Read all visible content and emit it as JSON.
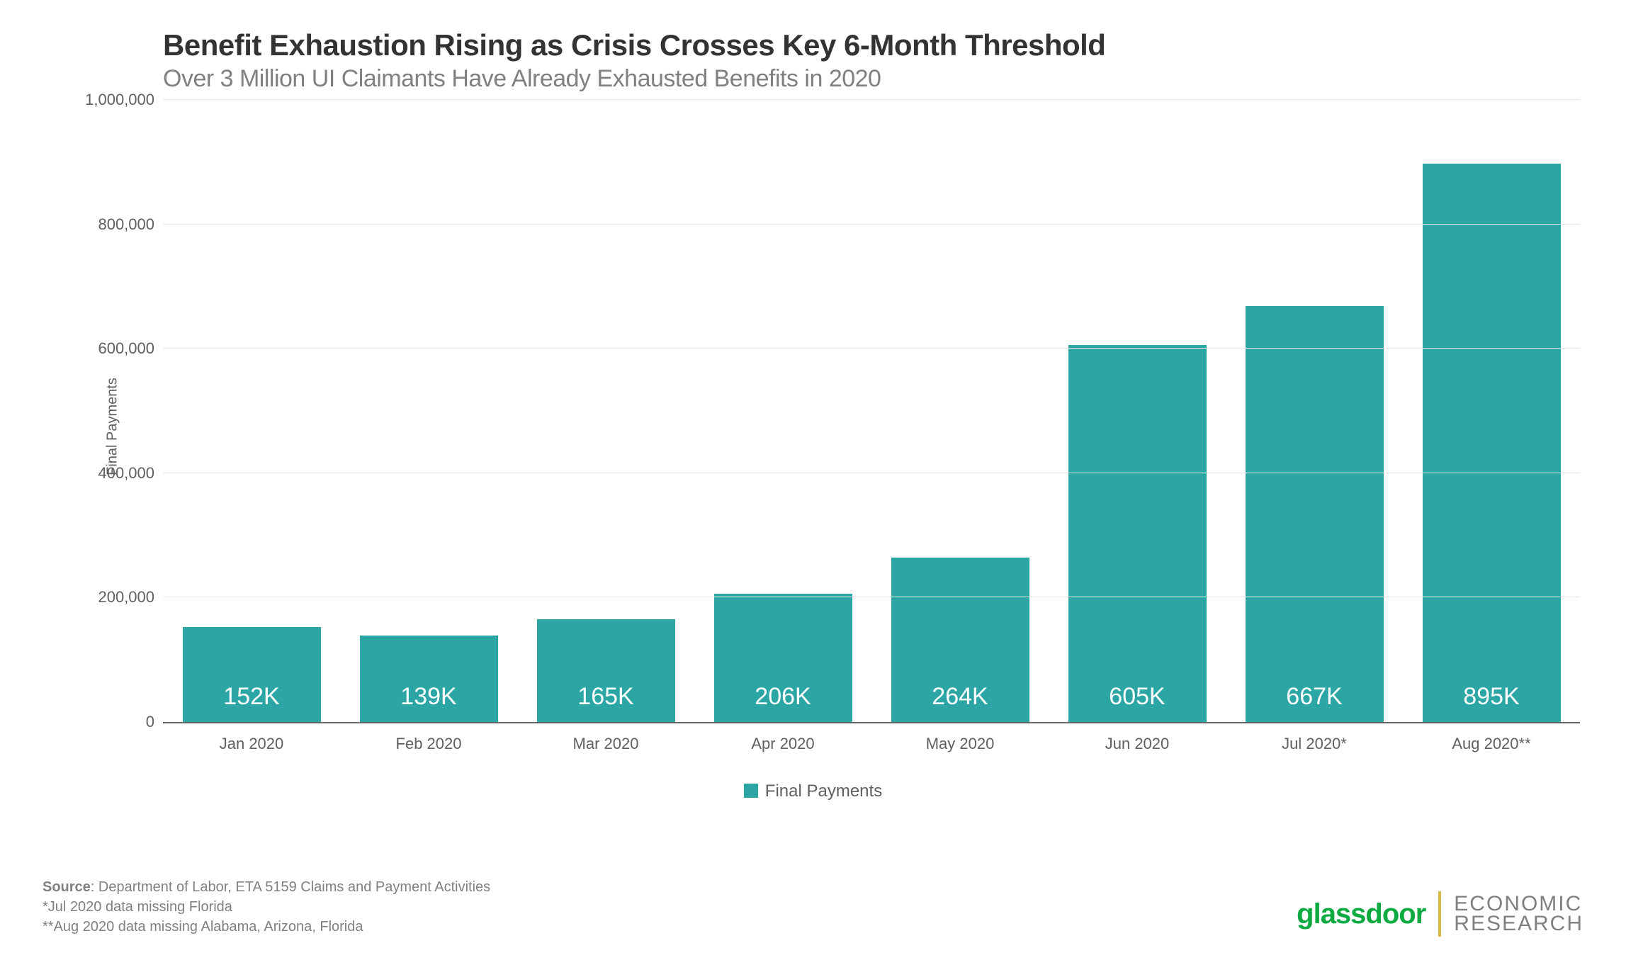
{
  "chart": {
    "type": "bar",
    "title": "Benefit Exhaustion Rising as Crisis Crosses Key 6-Month Threshold",
    "subtitle": "Over 3 Million UI Claimants Have Already Exhausted Benefits in 2020",
    "title_color": "#333333",
    "title_fontsize": 42,
    "subtitle_color": "#808080",
    "subtitle_fontsize": 34,
    "y_axis_label": "Final Payments",
    "categories": [
      "Jan 2020",
      "Feb 2020",
      "Mar 2020",
      "Apr 2020",
      "May 2020",
      "Jun 2020",
      "Jul 2020*",
      "Aug 2020**"
    ],
    "values": [
      152000,
      139000,
      165000,
      206000,
      264000,
      605000,
      667000,
      895000
    ],
    "value_labels": [
      "152K",
      "139K",
      "165K",
      "206K",
      "264K",
      "605K",
      "667K",
      "895K"
    ],
    "bar_color": "#2ca6a4",
    "bar_label_color": "#ffffff",
    "bar_label_fontsize": 34,
    "bar_width_ratio": 0.78,
    "ylim": [
      0,
      1000000
    ],
    "ytick_step": 200000,
    "ytick_labels": [
      "0",
      "200,000",
      "400,000",
      "600,000",
      "800,000",
      "1,000,000"
    ],
    "ytick_values": [
      0,
      200000,
      400000,
      600000,
      800000,
      1000000
    ],
    "grid_color": "#e5e5e5",
    "axis_color": "#666666",
    "tick_label_color": "#606060",
    "tick_label_fontsize": 22,
    "background_color": "#ffffff",
    "legend": {
      "swatch_color": "#2ca6a4",
      "label": "Final Payments"
    }
  },
  "source": {
    "label": "Source",
    "text": ": Department of Labor, ETA 5159 Claims and Payment Activities",
    "note1": "*Jul 2020 data missing Florida",
    "note2": "**Aug 2020 data missing Alabama, Arizona, Florida"
  },
  "branding": {
    "glassdoor": "glassdoor",
    "glassdoor_color": "#0caa41",
    "divider_color": "#d9b84a",
    "research_line1": "ECONOMIC",
    "research_line2": "RESEARCH",
    "research_color": "#808080"
  }
}
